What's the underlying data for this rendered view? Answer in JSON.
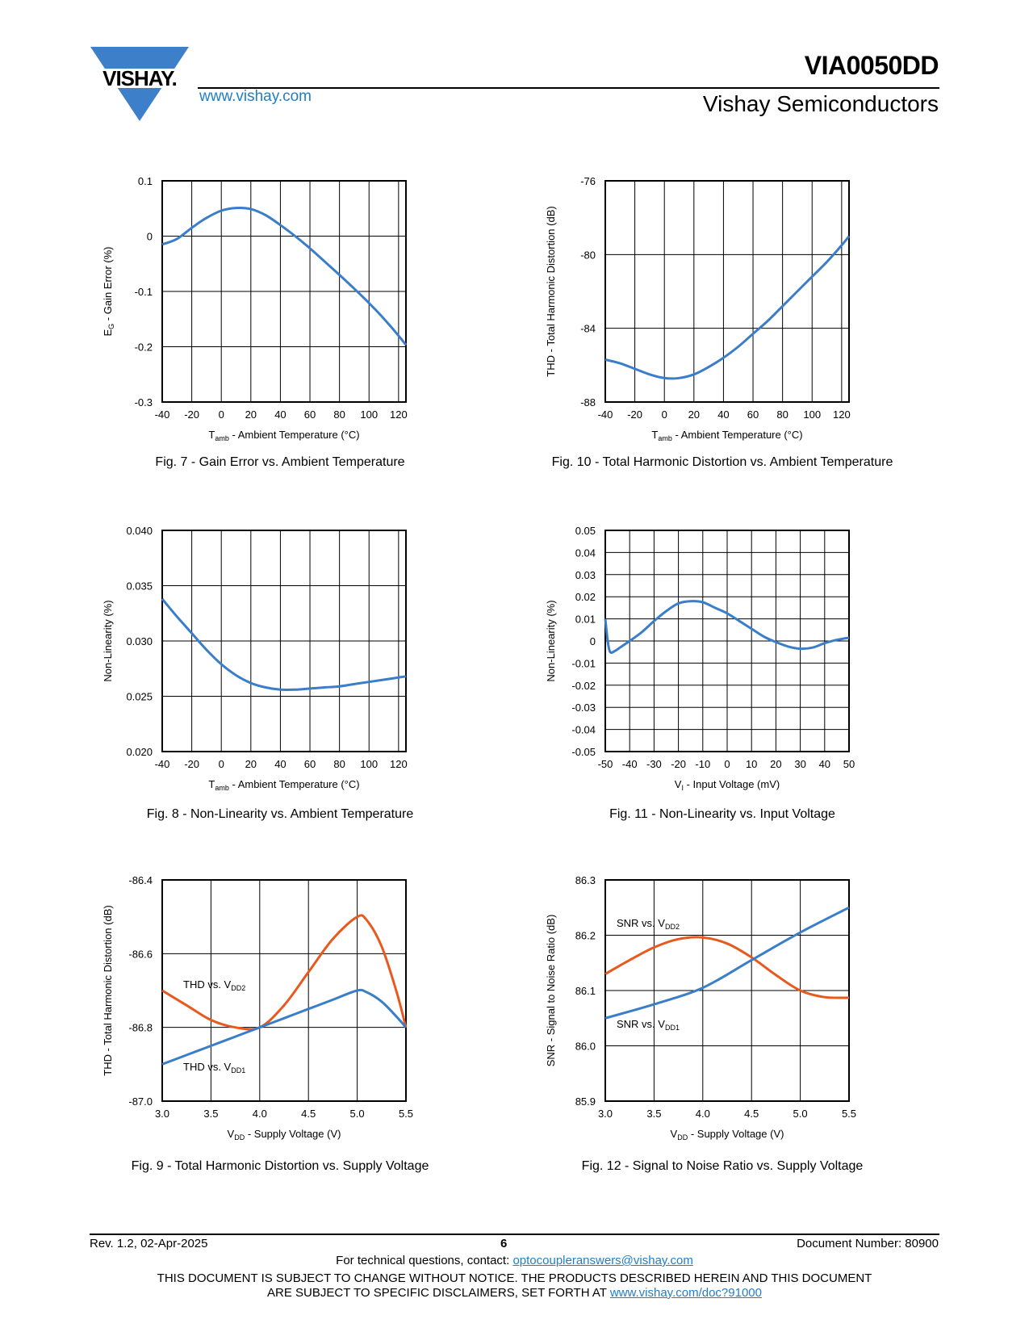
{
  "header": {
    "logo_text": "VISHAY.",
    "url": "www.vishay.com",
    "part_number": "VIA0050DD",
    "company": "Vishay Semiconductors"
  },
  "figures": [
    {
      "id": "fig7",
      "caption": "Fig. 7 - Gain Error vs. Ambient Temperature",
      "ylabel_main": "E",
      "ylabel_sub": "G",
      "ylabel_rest": " - Gain Error (%)",
      "xlabel_main": "T",
      "xlabel_sub": "amb",
      "xlabel_rest": " - Ambient Temperature (°C)",
      "chart_data": {
        "type": "line",
        "xlim": [
          -40,
          125
        ],
        "ylim": [
          -0.3,
          0.1
        ],
        "xticks": [
          -40,
          -20,
          0,
          20,
          40,
          60,
          80,
          100,
          120
        ],
        "xticklabels": [
          "-40",
          "-20",
          "0",
          "20",
          "40",
          "60",
          "80",
          "100",
          "120"
        ],
        "yticks": [
          -0.3,
          -0.2,
          -0.1,
          0,
          0.1
        ],
        "yticklabels": [
          "-0.3",
          "-0.2",
          "-0.1",
          "0",
          "0.1"
        ],
        "grid": true,
        "series": [
          {
            "color": "#3a7dc9",
            "x": [
              -40,
              -30,
              -20,
              -10,
              0,
              10,
              20,
              30,
              40,
              50,
              60,
              70,
              80,
              90,
              100,
              110,
              120,
              125
            ],
            "y": [
              -0.015,
              -0.005,
              0.015,
              0.033,
              0.046,
              0.051,
              0.049,
              0.038,
              0.02,
              0.0,
              -0.022,
              -0.046,
              -0.07,
              -0.095,
              -0.121,
              -0.149,
              -0.18,
              -0.197
            ]
          }
        ]
      }
    },
    {
      "id": "fig10",
      "caption": "Fig. 10 - Total Harmonic Distortion vs. Ambient Temperature",
      "ylabel_main": "THD - Total Harmonic Distortion (dB)",
      "ylabel_sub": "",
      "ylabel_rest": "",
      "xlabel_main": "T",
      "xlabel_sub": "amb",
      "xlabel_rest": " - Ambient Temperature (°C)",
      "chart_data": {
        "type": "line",
        "xlim": [
          -40,
          125
        ],
        "ylim": [
          -88,
          -76
        ],
        "xticks": [
          -40,
          -20,
          0,
          20,
          40,
          60,
          80,
          100,
          120
        ],
        "xticklabels": [
          "-40",
          "-20",
          "0",
          "20",
          "40",
          "60",
          "80",
          "100",
          "120"
        ],
        "yticks": [
          -88,
          -84,
          -80,
          -76
        ],
        "yticklabels": [
          "-88",
          "-84",
          "-80",
          "-76"
        ],
        "grid": true,
        "series": [
          {
            "color": "#3a7dc9",
            "x": [
              -40,
              -30,
              -20,
              -10,
              0,
              10,
              20,
              30,
              40,
              50,
              60,
              70,
              80,
              90,
              100,
              110,
              120,
              125
            ],
            "y": [
              -85.7,
              -85.9,
              -86.2,
              -86.5,
              -86.7,
              -86.7,
              -86.5,
              -86.1,
              -85.6,
              -85.0,
              -84.3,
              -83.6,
              -82.8,
              -82.0,
              -81.2,
              -80.4,
              -79.5,
              -79.0
            ]
          }
        ]
      }
    },
    {
      "id": "fig8",
      "caption": "Fig. 8 - Non-Linearity vs. Ambient Temperature",
      "ylabel_main": "Non-Linearity (%)",
      "ylabel_sub": "",
      "ylabel_rest": "",
      "xlabel_main": "T",
      "xlabel_sub": "amb",
      "xlabel_rest": " - Ambient Temperature (°C)",
      "chart_data": {
        "type": "line",
        "xlim": [
          -40,
          125
        ],
        "ylim": [
          0.02,
          0.04
        ],
        "xticks": [
          -40,
          -20,
          0,
          20,
          40,
          60,
          80,
          100,
          120
        ],
        "xticklabels": [
          "-40",
          "-20",
          "0",
          "20",
          "40",
          "60",
          "80",
          "100",
          "120"
        ],
        "yticks": [
          0.02,
          0.025,
          0.03,
          0.035,
          0.04
        ],
        "yticklabels": [
          "0.020",
          "0.025",
          "0.030",
          "0.035",
          "0.040"
        ],
        "grid": true,
        "series": [
          {
            "color": "#3a7dc9",
            "x": [
              -40,
              -30,
              -20,
              -10,
              0,
              10,
              20,
              30,
              40,
              50,
              60,
              70,
              80,
              90,
              100,
              110,
              120,
              125
            ],
            "y": [
              0.0338,
              0.0322,
              0.0307,
              0.0292,
              0.0279,
              0.0269,
              0.0262,
              0.0258,
              0.0256,
              0.0256,
              0.0257,
              0.0258,
              0.0259,
              0.0261,
              0.0263,
              0.0265,
              0.0267,
              0.0268
            ]
          }
        ]
      }
    },
    {
      "id": "fig11",
      "caption": "Fig. 11 - Non-Linearity vs. Input Voltage",
      "ylabel_main": "Non-Linearity (%)",
      "ylabel_sub": "",
      "ylabel_rest": "",
      "xlabel_main": "V",
      "xlabel_sub": "I",
      "xlabel_rest": " - Input Voltage (mV)",
      "chart_data": {
        "type": "line",
        "xlim": [
          -50,
          50
        ],
        "ylim": [
          -0.05,
          0.05
        ],
        "xticks": [
          -50,
          -40,
          -30,
          -20,
          -10,
          0,
          10,
          20,
          30,
          40,
          50
        ],
        "xticklabels": [
          "-50",
          "-40",
          "-30",
          "-20",
          "-10",
          "0",
          "10",
          "20",
          "30",
          "40",
          "50"
        ],
        "yticks": [
          -0.05,
          -0.04,
          -0.03,
          -0.02,
          -0.01,
          0,
          0.01,
          0.02,
          0.03,
          0.04,
          0.05
        ],
        "yticklabels": [
          "-0.05",
          "-0.04",
          "-0.03",
          "-0.02",
          "-0.01",
          "0",
          "0.01",
          "0.02",
          "0.03",
          "0.04",
          "0.05"
        ],
        "grid": true,
        "series": [
          {
            "color": "#3a7dc9",
            "x": [
              -50,
              -49,
              -48,
              -46,
              -44,
              -40,
              -35,
              -30,
              -25,
              -20,
              -15,
              -10,
              -5,
              0,
              5,
              10,
              15,
              20,
              25,
              30,
              35,
              40,
              45,
              50
            ],
            "y": [
              0.01,
              0.0,
              -0.005,
              -0.0045,
              -0.003,
              0.0,
              0.004,
              0.009,
              0.0135,
              0.017,
              0.018,
              0.0175,
              0.015,
              0.0125,
              0.009,
              0.0055,
              0.002,
              -0.0005,
              -0.0025,
              -0.0035,
              -0.003,
              -0.001,
              0.0005,
              0.0015
            ]
          }
        ]
      }
    },
    {
      "id": "fig9",
      "caption": "Fig. 9 - Total Harmonic Distortion vs. Supply Voltage",
      "ylabel_main": "THD - Total Harmonic Distortion (dB)",
      "ylabel_sub": "",
      "ylabel_rest": "",
      "xlabel_main": "V",
      "xlabel_sub": "DD",
      "xlabel_rest": " - Supply Voltage (V)",
      "annotations": [
        {
          "main": "THD vs. V",
          "sub": "DD2"
        },
        {
          "main": "THD vs. V",
          "sub": "DD1"
        }
      ],
      "chart_data": {
        "type": "line",
        "xlim": [
          3.0,
          5.5
        ],
        "ylim": [
          -87.0,
          -86.4
        ],
        "xticks": [
          3.0,
          3.5,
          4.0,
          4.5,
          5.0,
          5.5
        ],
        "xticklabels": [
          "3.0",
          "3.5",
          "4.0",
          "4.5",
          "5.0",
          "5.5"
        ],
        "yticks": [
          -87.0,
          -86.8,
          -86.6,
          -86.4
        ],
        "yticklabels": [
          "-87.0",
          "-86.8",
          "-86.6",
          "-86.4"
        ],
        "grid": true,
        "series": [
          {
            "color": "#e8591e",
            "x": [
              3.0,
              3.25,
              3.5,
              3.75,
              4.0,
              4.25,
              4.5,
              4.75,
              5.0,
              5.1,
              5.25,
              5.4,
              5.5
            ],
            "y": [
              -86.7,
              -86.74,
              -86.78,
              -86.8,
              -86.8,
              -86.74,
              -86.65,
              -86.56,
              -86.5,
              -86.51,
              -86.58,
              -86.7,
              -86.8
            ]
          },
          {
            "color": "#3a7dc9",
            "x": [
              3.0,
              3.25,
              3.5,
              3.75,
              4.0,
              4.25,
              4.5,
              4.75,
              5.0,
              5.1,
              5.25,
              5.4,
              5.5
            ],
            "y": [
              -86.9,
              -86.875,
              -86.85,
              -86.825,
              -86.8,
              -86.775,
              -86.75,
              -86.725,
              -86.7,
              -86.705,
              -86.73,
              -86.77,
              -86.8
            ]
          }
        ]
      }
    },
    {
      "id": "fig12",
      "caption": "Fig. 12 - Signal to Noise Ratio vs. Supply Voltage",
      "ylabel_main": "SNR - Signal to Noise Ratio (dB)",
      "ylabel_sub": "",
      "ylabel_rest": "",
      "xlabel_main": "V",
      "xlabel_sub": "DD",
      "xlabel_rest": " - Supply Voltage (V)",
      "annotations": [
        {
          "main": "SNR vs. V",
          "sub": "DD2"
        },
        {
          "main": "SNR vs. V",
          "sub": "DD1"
        }
      ],
      "chart_data": {
        "type": "line",
        "xlim": [
          3.0,
          5.5
        ],
        "ylim": [
          85.9,
          86.3
        ],
        "xticks": [
          3.0,
          3.5,
          4.0,
          4.5,
          5.0,
          5.5
        ],
        "xticklabels": [
          "3.0",
          "3.5",
          "4.0",
          "4.5",
          "5.0",
          "5.5"
        ],
        "yticks": [
          85.9,
          86.0,
          86.1,
          86.2,
          86.3
        ],
        "yticklabels": [
          "85.9",
          "86.0",
          "86.1",
          "86.2",
          "86.3"
        ],
        "grid": true,
        "series": [
          {
            "color": "#e8591e",
            "x": [
              3.0,
              3.25,
              3.5,
              3.75,
              4.0,
              4.25,
              4.5,
              4.75,
              5.0,
              5.25,
              5.5
            ],
            "y": [
              86.13,
              86.155,
              86.178,
              86.193,
              86.196,
              86.185,
              86.16,
              86.128,
              86.1,
              86.088,
              86.087
            ]
          },
          {
            "color": "#3a7dc9",
            "x": [
              3.0,
              3.5,
              4.0,
              4.5,
              5.0,
              5.5
            ],
            "y": [
              86.05,
              86.075,
              86.105,
              86.155,
              86.205,
              86.25
            ]
          }
        ]
      }
    }
  ],
  "footer": {
    "revision": "Rev. 1.2, 02-Apr-2025",
    "page": "6",
    "document_number": "Document Number: 80900",
    "contact_text": "For technical questions, contact: ",
    "contact_email": "optocoupleranswers@vishay.com",
    "disclaimer_line1": "THIS DOCUMENT IS SUBJECT TO CHANGE WITHOUT NOTICE. THE PRODUCTS DESCRIBED HEREIN AND THIS DOCUMENT",
    "disclaimer_line2": "ARE SUBJECT TO SPECIFIC DISCLAIMERS, SET FORTH AT ",
    "disclaimer_link": "www.vishay.com/doc?91000"
  }
}
